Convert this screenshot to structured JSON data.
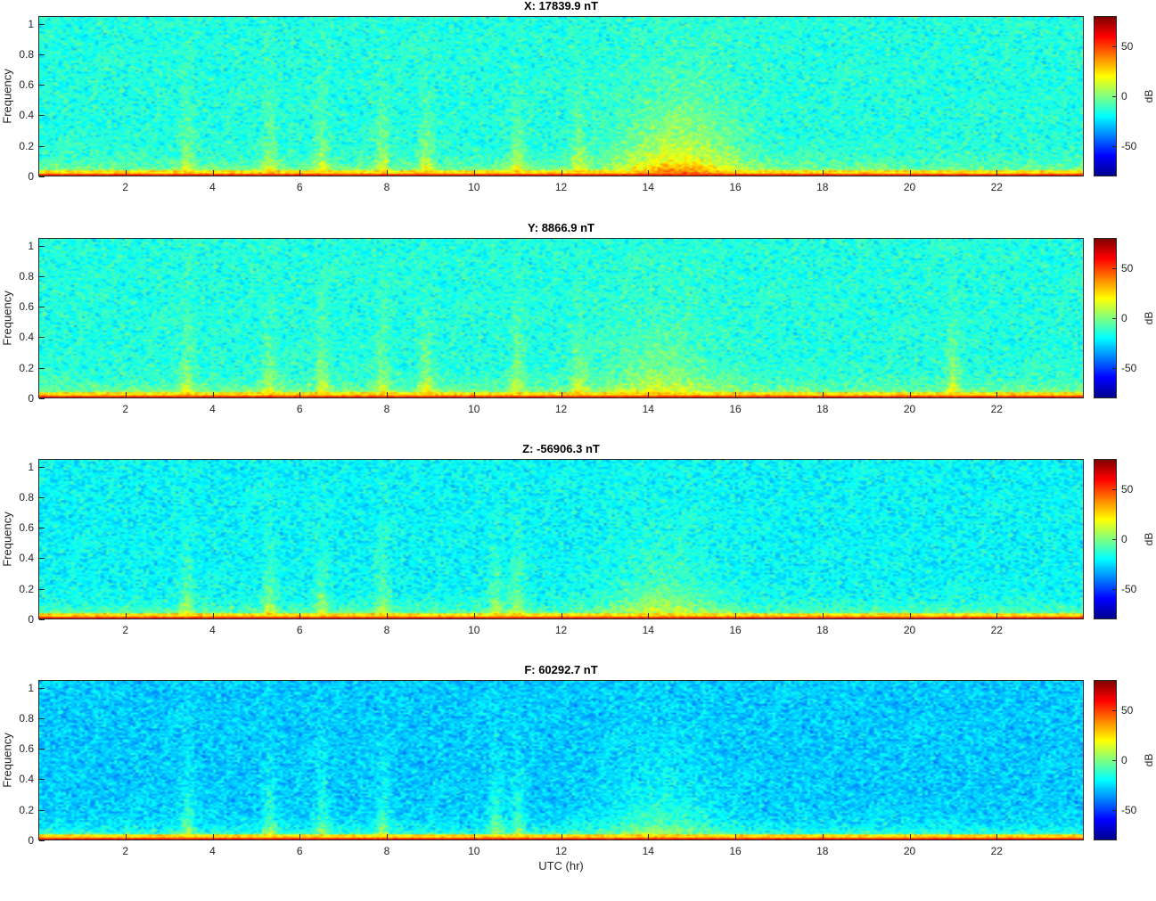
{
  "chart_data": [
    {
      "type": "heatmap",
      "title": "X: 17839.9 nT",
      "ylabel": "Frequency",
      "xlabel": "",
      "colorbar_label": "dB",
      "colorbar_ticks": [
        50,
        0,
        -50
      ],
      "clim": [
        -80,
        80
      ],
      "xlim": [
        0,
        24
      ],
      "ylim": [
        0,
        1.05
      ],
      "x_ticks": [
        2,
        4,
        6,
        8,
        10,
        12,
        14,
        16,
        18,
        20,
        22
      ],
      "y_ticks": [
        0,
        0.2,
        0.4,
        0.6,
        0.8,
        1
      ],
      "colormap": "jet",
      "background_level_db": -15,
      "low_frequency_band_db": 55,
      "bursts_utc_hr": [
        3.4,
        5.3,
        6.5,
        7.9,
        8.9,
        11.0,
        12.4,
        14.3,
        15.1
      ]
    },
    {
      "type": "heatmap",
      "title": "Y: 8866.9 nT",
      "ylabel": "Frequency",
      "xlabel": "",
      "colorbar_label": "dB",
      "colorbar_ticks": [
        50,
        0,
        -50
      ],
      "clim": [
        -80,
        80
      ],
      "xlim": [
        0,
        24
      ],
      "ylim": [
        0,
        1.05
      ],
      "x_ticks": [
        2,
        4,
        6,
        8,
        10,
        12,
        14,
        16,
        18,
        20,
        22
      ],
      "y_ticks": [
        0,
        0.2,
        0.4,
        0.6,
        0.8,
        1
      ],
      "colormap": "jet",
      "background_level_db": -15,
      "low_frequency_band_db": 55,
      "bursts_utc_hr": [
        3.4,
        5.3,
        6.5,
        7.9,
        8.9,
        11.0,
        12.4,
        14.3,
        21.0
      ]
    },
    {
      "type": "heatmap",
      "title": "Z: -56906.3 nT",
      "ylabel": "Frequency",
      "xlabel": "",
      "colorbar_label": "dB",
      "colorbar_ticks": [
        50,
        0,
        -50
      ],
      "clim": [
        -80,
        80
      ],
      "xlim": [
        0,
        24
      ],
      "ylim": [
        0,
        1.05
      ],
      "x_ticks": [
        2,
        4,
        6,
        8,
        10,
        12,
        14,
        16,
        18,
        20,
        22
      ],
      "y_ticks": [
        0,
        0.2,
        0.4,
        0.6,
        0.8,
        1
      ],
      "colormap": "jet",
      "background_level_db": -20,
      "low_frequency_band_db": 55,
      "bursts_utc_hr": [
        3.4,
        5.3,
        6.5,
        7.9,
        10.5,
        11.0,
        14.3
      ]
    },
    {
      "type": "heatmap",
      "title": "F: 60292.7 nT",
      "ylabel": "Frequency",
      "xlabel": "UTC (hr)",
      "colorbar_label": "dB",
      "colorbar_ticks": [
        50,
        0,
        -50
      ],
      "clim": [
        -80,
        80
      ],
      "xlim": [
        0,
        24
      ],
      "ylim": [
        0,
        1.05
      ],
      "x_ticks": [
        2,
        4,
        6,
        8,
        10,
        12,
        14,
        16,
        18,
        20,
        22
      ],
      "y_ticks": [
        0,
        0.2,
        0.4,
        0.6,
        0.8,
        1
      ],
      "colormap": "jet",
      "background_level_db": -28,
      "low_frequency_band_db": 55,
      "bursts_utc_hr": [
        3.4,
        5.3,
        6.5,
        7.9,
        10.5,
        11.0,
        14.3
      ]
    }
  ]
}
